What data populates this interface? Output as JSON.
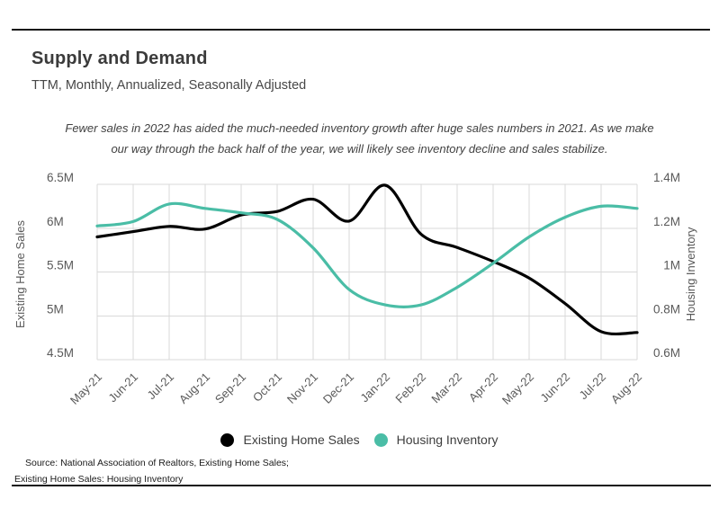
{
  "header": {
    "title": "Supply and Demand",
    "subtitle": "TTM, Monthly, Annualized, Seasonally Adjusted"
  },
  "annotation": {
    "line1": "Fewer sales in 2022 has aided the much-needed inventory growth after huge sales numbers in 2021. As we make",
    "line2": "our way through the back half of the year, we will likely see inventory decline and sales stabilize."
  },
  "chart_data": {
    "type": "line",
    "title": "Supply and Demand",
    "categories": [
      "May-21",
      "Jun-21",
      "Jul-21",
      "Aug-21",
      "Sep-21",
      "Oct-21",
      "Nov-21",
      "Dec-21",
      "Jan-22",
      "Feb-22",
      "Mar-22",
      "Apr-22",
      "May-22",
      "Jun-22",
      "Jul-22",
      "Aug-22"
    ],
    "series": [
      {
        "name": "Existing Home Sales",
        "axis": "left",
        "color": "#000000",
        "values": [
          5.9,
          5.96,
          6.02,
          5.99,
          6.15,
          6.19,
          6.33,
          6.08,
          6.49,
          5.93,
          5.78,
          5.62,
          5.43,
          5.14,
          4.82,
          4.81
        ]
      },
      {
        "name": "Housing Inventory",
        "axis": "right",
        "color": "#4abda6",
        "values": [
          1.21,
          1.23,
          1.31,
          1.29,
          1.27,
          1.24,
          1.11,
          0.92,
          0.85,
          0.85,
          0.93,
          1.04,
          1.16,
          1.25,
          1.3,
          1.29
        ]
      }
    ],
    "left_axis": {
      "title": "Existing Home Sales",
      "ticks": [
        "6.5M",
        "6M",
        "5.5M",
        "5M",
        "4.5M"
      ],
      "max": 6.5,
      "step": 0.5,
      "lim": [
        4.5,
        6.5
      ]
    },
    "right_axis": {
      "title": "Housing Inventory",
      "ticks": [
        "1.4M",
        "1.2M",
        "1M",
        "0.8M",
        "0.6M"
      ],
      "max": 1.4,
      "step": 0.2,
      "lim": [
        0.6,
        1.4
      ]
    },
    "grid": true,
    "legend_position": "bottom",
    "smooth": true
  },
  "source": {
    "line1": "Source:  National Association of Realtors, Existing Home Sales;",
    "line2": "Existing Home Sales: Housing Inventory"
  },
  "colors": {
    "accent_teal": "#4abda6",
    "line_black": "#000000",
    "grid": "#d9d9d9",
    "text_dark": "#3b3b3b",
    "text_axis": "#595959",
    "rule": "#141414"
  }
}
